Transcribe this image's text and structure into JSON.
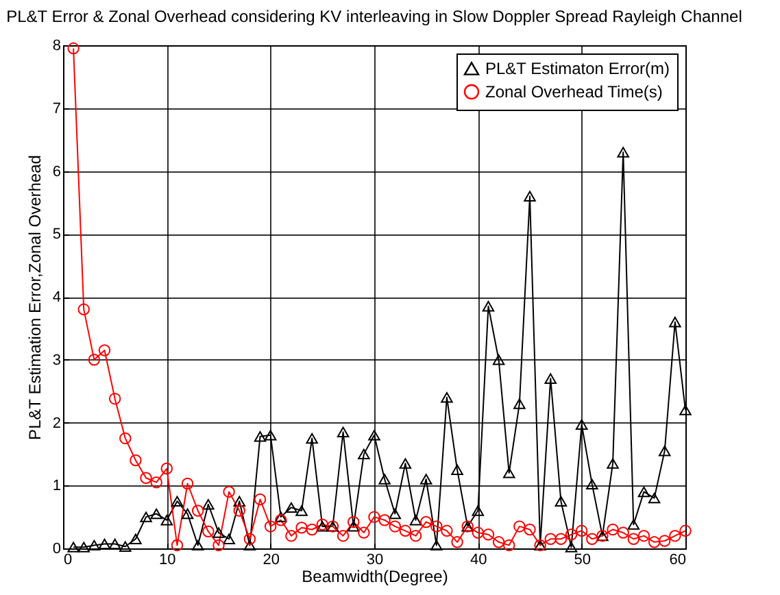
{
  "chart_data": {
    "type": "line",
    "title": "PL&T Error & Zonal Overhead considering KV interleaving in Slow Doppler Spread Rayleigh Channel",
    "xlabel": "Beamwidth(Degree)",
    "ylabel": "PL&T Estimation Error,Zonal Overhead",
    "x": [
      1,
      2,
      3,
      4,
      5,
      6,
      7,
      8,
      9,
      10,
      11,
      12,
      13,
      14,
      15,
      16,
      17,
      18,
      19,
      20,
      21,
      22,
      23,
      24,
      25,
      26,
      27,
      28,
      29,
      30,
      31,
      32,
      33,
      34,
      35,
      36,
      37,
      38,
      39,
      40,
      41,
      42,
      43,
      44,
      45,
      46,
      47,
      48,
      49,
      50,
      51,
      52,
      53,
      54,
      55,
      56,
      57,
      58,
      59,
      60
    ],
    "series": [
      {
        "name": "PL&T Estimaton Error(m)",
        "color": "#000000",
        "marker": "triangle",
        "values": [
          0.02,
          0.02,
          0.05,
          0.07,
          0.07,
          0.03,
          0.15,
          0.5,
          0.55,
          0.45,
          0.75,
          0.55,
          0.05,
          0.7,
          0.25,
          0.15,
          0.75,
          0.05,
          1.78,
          1.8,
          0.5,
          0.65,
          0.6,
          1.75,
          0.35,
          0.35,
          1.85,
          0.35,
          1.5,
          1.8,
          1.1,
          0.55,
          1.35,
          0.45,
          1.1,
          0.05,
          2.4,
          1.25,
          0.35,
          0.6,
          3.85,
          3.0,
          1.2,
          2.3,
          5.6,
          0.05,
          2.7,
          0.75,
          0.02,
          1.97,
          1.02,
          0.2,
          1.35,
          6.3,
          0.38,
          0.9,
          0.8,
          1.55,
          3.6,
          2.2
        ]
      },
      {
        "name": "Zonal Overhead Time(s)",
        "color": "#ff0000",
        "marker": "circle",
        "values": [
          7.95,
          3.8,
          3.0,
          3.15,
          2.38,
          1.75,
          1.4,
          1.12,
          1.05,
          1.27,
          0.05,
          1.03,
          0.6,
          0.27,
          0.05,
          0.9,
          0.6,
          0.15,
          0.78,
          0.35,
          0.45,
          0.2,
          0.33,
          0.3,
          0.38,
          0.35,
          0.2,
          0.42,
          0.25,
          0.5,
          0.45,
          0.35,
          0.28,
          0.2,
          0.42,
          0.35,
          0.28,
          0.1,
          0.35,
          0.25,
          0.22,
          0.1,
          0.05,
          0.35,
          0.3,
          0.05,
          0.15,
          0.15,
          0.22,
          0.28,
          0.15,
          0.2,
          0.3,
          0.25,
          0.15,
          0.2,
          0.1,
          0.12,
          0.2,
          0.28
        ]
      }
    ],
    "xlim": [
      0,
      60
    ],
    "xticks": [
      0,
      10,
      20,
      30,
      40,
      50,
      60
    ],
    "ylim": [
      0,
      8
    ],
    "yticks": [
      0,
      1,
      2,
      3,
      4,
      5,
      6,
      7,
      8
    ],
    "grid": true,
    "legend": "top right",
    "line_style": "solid"
  }
}
